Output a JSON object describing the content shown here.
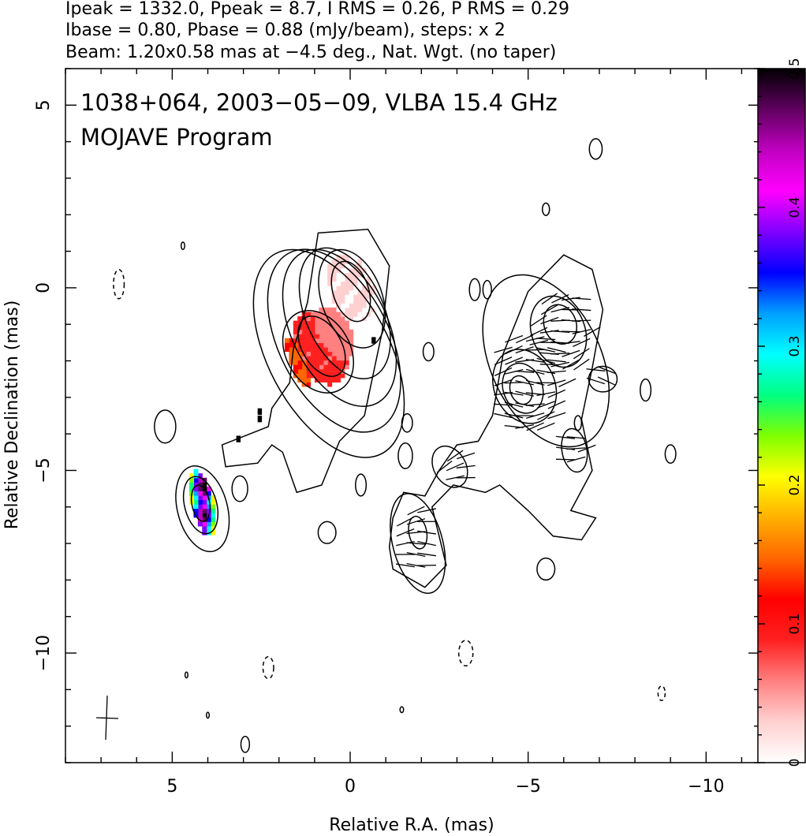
{
  "header": {
    "line1": "Ipeak = 1332.0, Ppeak = 8.7, I RMS = 0.26, P RMS = 0.29",
    "line2": "Ibase = 0.80, Pbase = 0.88 (mJy/beam), steps: x 2",
    "line3": "Beam: 1.20x0.58 mas at −4.5 deg., Nat. Wgt. (no taper)"
  },
  "plot_title": {
    "line1": "1038+064, 2003−05−09, VLBA 15.4 GHz",
    "line2": "MOJAVE Program"
  },
  "chart_data": {
    "type": "heatmap",
    "title": "1038+064, 2003−05−09, VLBA 15.4 GHz",
    "subtitle": "MOJAVE Program",
    "xlabel": "Relative R.A. (mas)",
    "ylabel": "Relative Declination (mas)",
    "xlim": [
      8.0,
      -11.5
    ],
    "ylim": [
      -13.0,
      6.0
    ],
    "x_ticks": [
      5,
      0,
      -5,
      -10
    ],
    "x_tick_labels": [
      "5",
      "0",
      "−5",
      "−10"
    ],
    "y_ticks": [
      5,
      0,
      -5,
      -10
    ],
    "y_tick_labels": [
      "5",
      "0",
      "−5",
      "−10"
    ],
    "grid": false,
    "colorbar": {
      "range": [
        0,
        0.5
      ],
      "ticks": [
        0,
        0.1,
        0.2,
        0.3,
        0.4,
        0.5
      ],
      "tick_labels": [
        "0",
        "0.1",
        "0.2",
        "0.3",
        "0.4",
        "0.5"
      ],
      "colormap": [
        "#ffffff",
        "#ffd0d0",
        "#ff8080",
        "#ff2020",
        "#ff0000",
        "#ff6600",
        "#ffb000",
        "#ffff00",
        "#80ff00",
        "#00ff80",
        "#00ffff",
        "#00a0ff",
        "#0000ff",
        "#8000ff",
        "#ff00ff",
        "#c000c0",
        "#600060",
        "#000000"
      ]
    },
    "core": {
      "x": 0.0,
      "y": 0.0
    },
    "contours": [
      {
        "x": -0.02,
        "y": -0.1,
        "rx": 0.5,
        "ry": 0.85,
        "rot": -18
      },
      {
        "x": -0.05,
        "y": -0.3,
        "rx": 0.85,
        "ry": 1.4,
        "rot": -20
      },
      {
        "x": 0.15,
        "y": -0.7,
        "rx": 1.1,
        "ry": 1.9,
        "rot": -24
      },
      {
        "x": 0.3,
        "y": -1.1,
        "rx": 1.35,
        "ry": 2.3,
        "rot": -26
      },
      {
        "x": 0.45,
        "y": -1.45,
        "rx": 1.55,
        "ry": 2.7,
        "rot": -27
      },
      {
        "x": 0.6,
        "y": -1.8,
        "rx": 1.7,
        "ry": 3.1,
        "rot": -28
      },
      {
        "x": 0.8,
        "y": -1.6,
        "rx": 0.55,
        "ry": 0.9,
        "rot": -30
      },
      {
        "x": 0.9,
        "y": -1.75,
        "rx": 0.9,
        "ry": 1.2,
        "rot": -30
      },
      {
        "x": 4.2,
        "y": -5.9,
        "rx": 0.25,
        "ry": 0.5,
        "rot": -10
      },
      {
        "x": 4.2,
        "y": -5.95,
        "rx": 0.45,
        "ry": 0.8,
        "rot": -15
      },
      {
        "x": 4.15,
        "y": -6.05,
        "rx": 0.7,
        "ry": 1.2,
        "rot": -15
      },
      {
        "x": -4.8,
        "y": -2.8,
        "rx": 0.3,
        "ry": 0.4,
        "rot": -20
      },
      {
        "x": -4.85,
        "y": -2.75,
        "rx": 0.55,
        "ry": 0.7,
        "rot": -20
      },
      {
        "x": -4.9,
        "y": -2.7,
        "rx": 0.85,
        "ry": 1.05,
        "rot": -25
      },
      {
        "x": -5.9,
        "y": -1.0,
        "rx": 0.45,
        "ry": 0.55,
        "rot": -20
      },
      {
        "x": -5.85,
        "y": -1.2,
        "rx": 0.75,
        "ry": 1.0,
        "rot": -20
      },
      {
        "x": -5.5,
        "y": -2.0,
        "rx": 1.55,
        "ry": 2.5,
        "rot": -25
      },
      {
        "x": -1.9,
        "y": -6.7,
        "rx": 0.25,
        "ry": 0.45,
        "rot": -10
      },
      {
        "x": -1.9,
        "y": -7.0,
        "rx": 0.7,
        "ry": 1.4,
        "rot": -15
      },
      {
        "x": -2.8,
        "y": -4.9,
        "rx": 0.45,
        "ry": 0.6,
        "rot": -30
      },
      {
        "x": -6.3,
        "y": -4.45,
        "rx": 0.35,
        "ry": 0.6,
        "rot": -10
      },
      {
        "x": -7.1,
        "y": -2.5,
        "rx": 0.4,
        "ry": 0.35,
        "rot": 0
      },
      {
        "x": 5.2,
        "y": -3.8,
        "rx": 0.3,
        "ry": 0.45,
        "rot": 0
      },
      {
        "x": 3.1,
        "y": -5.5,
        "rx": 0.22,
        "ry": 0.35,
        "rot": 0
      },
      {
        "x": 0.65,
        "y": -6.7,
        "rx": 0.25,
        "ry": 0.3,
        "rot": 0
      },
      {
        "x": -0.3,
        "y": -5.4,
        "rx": 0.15,
        "ry": 0.3,
        "rot": 0
      },
      {
        "x": -1.6,
        "y": -3.7,
        "rx": 0.15,
        "ry": 0.25,
        "rot": 0
      },
      {
        "x": -3.5,
        "y": -0.05,
        "rx": 0.15,
        "ry": 0.3,
        "rot": 0
      },
      {
        "x": -3.85,
        "y": -0.05,
        "rx": 0.12,
        "ry": 0.25,
        "rot": 0
      },
      {
        "x": -2.2,
        "y": -1.75,
        "rx": 0.15,
        "ry": 0.25,
        "rot": 0
      },
      {
        "x": -1.55,
        "y": -4.6,
        "rx": 0.2,
        "ry": 0.35,
        "rot": 0
      },
      {
        "x": -6.4,
        "y": -3.7,
        "rx": 0.1,
        "ry": 0.2,
        "rot": 0
      },
      {
        "x": -8.3,
        "y": -2.8,
        "rx": 0.15,
        "ry": 0.3,
        "rot": 0
      },
      {
        "x": -9.0,
        "y": -4.55,
        "rx": 0.15,
        "ry": 0.25,
        "rot": 0
      },
      {
        "x": -5.5,
        "y": -7.7,
        "rx": 0.25,
        "ry": 0.3,
        "rot": 0
      },
      {
        "x": -6.9,
        "y": 3.8,
        "rx": 0.18,
        "ry": 0.28,
        "rot": 0
      },
      {
        "x": -5.5,
        "y": 2.15,
        "rx": 0.1,
        "ry": 0.17,
        "rot": 0
      },
      {
        "x": 4.6,
        "y": -10.6,
        "rx": 0.04,
        "ry": 0.08,
        "rot": 0
      },
      {
        "x": 4.0,
        "y": -11.7,
        "rx": 0.04,
        "ry": 0.08,
        "rot": 0
      },
      {
        "x": -1.45,
        "y": -11.55,
        "rx": 0.05,
        "ry": 0.08,
        "rot": 0
      },
      {
        "x": 2.95,
        "y": -12.5,
        "rx": 0.12,
        "ry": 0.22,
        "rot": 0
      },
      {
        "x": 4.7,
        "y": 1.15,
        "rx": 0.05,
        "ry": 0.1,
        "rot": 0
      }
    ],
    "negative_contours": [
      {
        "x": 6.5,
        "y": 0.1,
        "rx": 0.15,
        "ry": 0.4,
        "rot": 0
      },
      {
        "x": 2.3,
        "y": -10.4,
        "rx": 0.15,
        "ry": 0.3,
        "rot": 0
      },
      {
        "x": -3.25,
        "y": -10.0,
        "rx": 0.2,
        "ry": 0.35,
        "rot": 0
      },
      {
        "x": -8.75,
        "y": -11.1,
        "rx": 0.1,
        "ry": 0.2,
        "rot": 0
      }
    ]
  }
}
